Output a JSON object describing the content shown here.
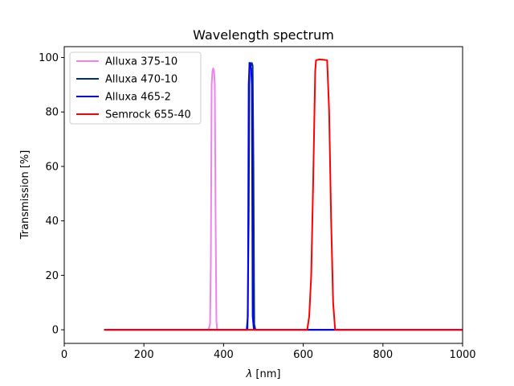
{
  "chart_data": {
    "type": "line",
    "title": "Wavelength spectrum",
    "xlabel_symbol": "λ",
    "xlabel_unit": " [nm]",
    "ylabel": "Transmission [%]",
    "xlim": [
      0,
      1000
    ],
    "ylim": [
      -5,
      104
    ],
    "xticks": [
      0,
      200,
      400,
      600,
      800,
      1000
    ],
    "yticks": [
      0,
      20,
      40,
      60,
      80,
      100
    ],
    "grid": false,
    "legend_position": "top-left",
    "series": [
      {
        "name": "Alluxa 375-10",
        "color": "#ee82ee",
        "x": [
          100,
          362,
          366,
          368,
          370,
          372,
          374,
          376,
          378,
          380,
          382,
          384,
          386,
          1000
        ],
        "y": [
          0,
          0,
          2,
          25,
          90,
          95,
          96,
          95,
          90,
          40,
          3,
          0,
          0,
          0
        ]
      },
      {
        "name": "Alluxa 470-10",
        "color": "#00306e",
        "x": [
          100,
          460,
          463,
          465,
          467,
          469,
          471,
          473,
          475,
          477,
          480,
          1000
        ],
        "y": [
          0,
          0,
          40,
          98,
          98,
          97,
          98,
          97,
          60,
          2,
          0,
          0
        ]
      },
      {
        "name": "Alluxa 465-2",
        "color": "#0000ff",
        "x": [
          100,
          458,
          461,
          463,
          465,
          467,
          469,
          471,
          473,
          476,
          1000
        ],
        "y": [
          0,
          0,
          5,
          90,
          98,
          97,
          96,
          90,
          5,
          0,
          0
        ]
      },
      {
        "name": "Semrock 655-40",
        "color": "#ff0000",
        "x": [
          100,
          610,
          615,
          620,
          625,
          630,
          632,
          640,
          650,
          660,
          665,
          670,
          675,
          680,
          1000
        ],
        "y": [
          0,
          0,
          5,
          20,
          55,
          95,
          99,
          99.3,
          99.2,
          99,
          80,
          40,
          10,
          0,
          0
        ]
      }
    ]
  }
}
